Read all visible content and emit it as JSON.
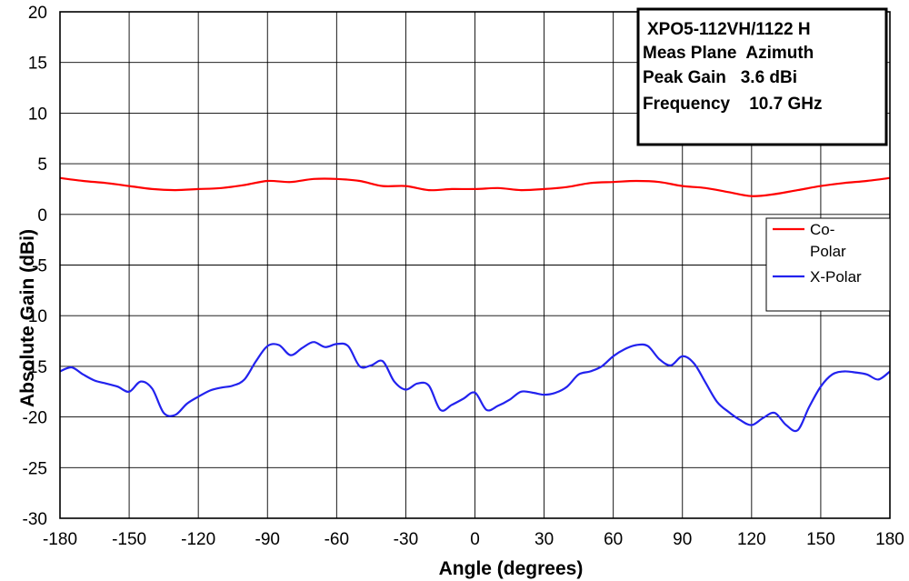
{
  "chart_data": {
    "type": "line",
    "xlabel": "Angle (degrees)",
    "ylabel": "Absolute Gain (dBi)",
    "xlim": [
      -180,
      180
    ],
    "ylim": [
      -30,
      20
    ],
    "x_ticks": [
      -180,
      -150,
      -120,
      -90,
      -60,
      -30,
      0,
      30,
      60,
      90,
      120,
      150,
      180
    ],
    "y_ticks": [
      20,
      15,
      10,
      5,
      0,
      -5,
      -10,
      -15,
      -20,
      -25,
      -30
    ],
    "grid": true,
    "legend_position": "right",
    "info_box": {
      "lines": [
        "XPO5-112VH/1122 H",
        "Meas Plane  Azimuth",
        "Peak Gain   3.6 dBi",
        "Frequency    10.7 GHz"
      ]
    },
    "series": [
      {
        "name": "Co-Polar",
        "color": "#ff0000",
        "x": [
          -180,
          -170,
          -160,
          -150,
          -140,
          -130,
          -120,
          -110,
          -100,
          -90,
          -80,
          -70,
          -60,
          -50,
          -40,
          -30,
          -20,
          -10,
          0,
          10,
          20,
          30,
          40,
          50,
          60,
          70,
          80,
          90,
          100,
          110,
          120,
          130,
          140,
          150,
          160,
          170,
          180
        ],
        "y": [
          3.6,
          3.3,
          3.1,
          2.8,
          2.5,
          2.4,
          2.5,
          2.6,
          2.9,
          3.3,
          3.2,
          3.5,
          3.5,
          3.3,
          2.8,
          2.8,
          2.4,
          2.5,
          2.5,
          2.6,
          2.4,
          2.5,
          2.7,
          3.1,
          3.2,
          3.3,
          3.2,
          2.8,
          2.6,
          2.2,
          1.8,
          2.0,
          2.4,
          2.8,
          3.1,
          3.3,
          3.6
        ]
      },
      {
        "name": "X-Polar",
        "color": "#2222ee",
        "x": [
          -180,
          -175,
          -170,
          -165,
          -160,
          -155,
          -150,
          -145,
          -140,
          -135,
          -130,
          -125,
          -120,
          -115,
          -110,
          -105,
          -100,
          -95,
          -90,
          -85,
          -80,
          -75,
          -70,
          -65,
          -60,
          -55,
          -50,
          -45,
          -40,
          -35,
          -30,
          -25,
          -20,
          -15,
          -10,
          -5,
          0,
          5,
          10,
          15,
          20,
          25,
          30,
          35,
          40,
          45,
          50,
          55,
          60,
          65,
          70,
          75,
          80,
          85,
          90,
          95,
          100,
          105,
          110,
          115,
          120,
          125,
          130,
          135,
          140,
          145,
          150,
          155,
          160,
          165,
          170,
          175,
          180
        ],
        "y": [
          -15.5,
          -15.1,
          -15.8,
          -16.4,
          -16.7,
          -17.0,
          -17.5,
          -16.5,
          -17.2,
          -19.6,
          -19.8,
          -18.7,
          -18.0,
          -17.4,
          -17.1,
          -16.9,
          -16.3,
          -14.5,
          -13.0,
          -12.9,
          -13.9,
          -13.2,
          -12.6,
          -13.1,
          -12.8,
          -13.0,
          -15.0,
          -14.9,
          -14.5,
          -16.5,
          -17.3,
          -16.7,
          -16.9,
          -19.3,
          -18.8,
          -18.2,
          -17.6,
          -19.3,
          -18.9,
          -18.3,
          -17.5,
          -17.6,
          -17.8,
          -17.6,
          -17.0,
          -15.8,
          -15.5,
          -15.0,
          -14.0,
          -13.3,
          -12.9,
          -13.0,
          -14.3,
          -14.9,
          -14.0,
          -14.7,
          -16.6,
          -18.5,
          -19.5,
          -20.3,
          -20.8,
          -20.1,
          -19.6,
          -20.8,
          -21.3,
          -19.0,
          -17.0,
          -15.8,
          -15.5,
          -15.6,
          -15.8,
          -16.3,
          -15.5
        ]
      }
    ]
  }
}
